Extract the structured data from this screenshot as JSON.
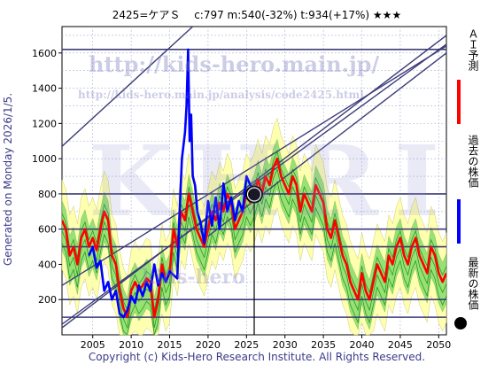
{
  "header": {
    "title": "2425=ケアＳ　 c:797  m:540(-32%)  t:934(+17%)  ★★★"
  },
  "side_text": "Generated on Monday 2026/1/5.",
  "footer": "Copyright (c) Kids-Hero Research Institute. All Rights Reserved.",
  "watermarks": {
    "url": "http://kids-hero.main.jp/",
    "path": "http://kids-hero.main.jp/analysis/code2425.html",
    "site": "kids-hero",
    "big": "KHRI"
  },
  "legend": {
    "forecast_label": "ＡＩ予測",
    "past_label": "過去の株価",
    "latest_label": "最新の株価"
  },
  "colors": {
    "forecast": "#ff0000",
    "past": "#0000ff",
    "latest": "#000000",
    "band_outer": "#ffffa8",
    "band_inner": "#44cc44",
    "hline": "#3c3c78",
    "grid": "#aab4d8"
  },
  "chart_data": {
    "type": "line",
    "title": "2425=ケアＳ c:797 m:540(-32%) t:934(+17%) ★★★",
    "xlabel": "",
    "ylabel": "",
    "xlim": [
      2001,
      2051
    ],
    "ylim": [
      0,
      1750
    ],
    "x_ticks": [
      2005,
      2010,
      2015,
      2020,
      2025,
      2030,
      2035,
      2040,
      2045,
      2050
    ],
    "y_ticks": [
      200,
      400,
      600,
      800,
      1000,
      1200,
      1400,
      1600
    ],
    "grid": true,
    "legend_position": "right",
    "horizontal_levels": [
      100,
      200,
      500,
      600,
      800,
      1620
    ],
    "latest_point": {
      "x": 2026.0,
      "y": 797
    },
    "channel_lines": [
      {
        "x1": 2001,
        "y1": 40,
        "x2": 2051,
        "y2": 1700
      },
      {
        "x1": 2001,
        "y1": 60,
        "x2": 2051,
        "y2": 1650
      },
      {
        "x1": 2001,
        "y1": 280,
        "x2": 2051,
        "y2": 1640
      },
      {
        "x1": 2001,
        "y1": 1070,
        "x2": 2018,
        "y2": 1750
      },
      {
        "x1": 2020,
        "y1": 560,
        "x2": 2051,
        "y2": 1600
      }
    ],
    "series": [
      {
        "name": "過去の株価",
        "x": [
          2004.5,
          2005,
          2005.5,
          2006,
          2006.5,
          2007,
          2007.5,
          2008,
          2008.5,
          2009,
          2009.5,
          2010,
          2010.5,
          2011,
          2011.5,
          2012,
          2012.5,
          2013,
          2013.5,
          2014,
          2014.5,
          2015,
          2015.5,
          2016,
          2016.3,
          2016.6,
          2017,
          2017.2,
          2017.4,
          2017.6,
          2017.8,
          2018,
          2018.3,
          2018.6,
          2019,
          2019.5,
          2020,
          2020.5,
          2021,
          2021.5,
          2022,
          2022.5,
          2023,
          2023.5,
          2024,
          2024.5,
          2025,
          2025.5,
          2026
        ],
        "y": [
          450,
          500,
          380,
          420,
          250,
          300,
          200,
          250,
          120,
          100,
          140,
          220,
          180,
          280,
          220,
          300,
          250,
          400,
          280,
          350,
          300,
          360,
          340,
          320,
          700,
          1000,
          1150,
          1300,
          1620,
          1100,
          1250,
          900,
          850,
          700,
          640,
          520,
          760,
          620,
          780,
          600,
          860,
          700,
          780,
          650,
          760,
          700,
          900,
          850,
          797
        ]
      },
      {
        "name": "ＡＩ予測（過去）",
        "x": [
          2001,
          2001.5,
          2002,
          2002.5,
          2003,
          2003.5,
          2004,
          2004.5,
          2005,
          2005.5,
          2006,
          2006.5,
          2007,
          2007.5,
          2008,
          2008.5,
          2009,
          2009.5,
          2010,
          2010.5,
          2011,
          2011.5,
          2012,
          2012.5,
          2013,
          2013.5,
          2014,
          2014.5,
          2015,
          2015.5,
          2016,
          2016.5,
          2017,
          2017.5,
          2018,
          2018.5,
          2019,
          2019.5,
          2020,
          2020.5,
          2021,
          2021.5,
          2022,
          2022.5,
          2023,
          2023.5,
          2024,
          2024.5,
          2025,
          2025.5,
          2026
        ],
        "y": [
          650,
          600,
          450,
          500,
          400,
          550,
          600,
          500,
          550,
          480,
          600,
          700,
          650,
          450,
          400,
          250,
          150,
          100,
          250,
          300,
          250,
          280,
          320,
          300,
          100,
          200,
          400,
          300,
          350,
          600,
          500,
          700,
          650,
          800,
          700,
          600,
          550,
          500,
          600,
          700,
          650,
          750,
          700,
          800,
          750,
          600,
          650,
          700,
          800,
          750,
          800
        ]
      },
      {
        "name": "ＡＩ予測",
        "x": [
          2026,
          2026.5,
          2027,
          2027.5,
          2028,
          2028.5,
          2029,
          2029.5,
          2030,
          2030.5,
          2031,
          2031.5,
          2032,
          2032.5,
          2033,
          2033.5,
          2034,
          2034.5,
          2035,
          2035.5,
          2036,
          2036.5,
          2037,
          2037.5,
          2038,
          2038.5,
          2039,
          2039.5,
          2040,
          2040.5,
          2041,
          2041.5,
          2042,
          2042.5,
          2043,
          2043.5,
          2044,
          2044.5,
          2045,
          2045.5,
          2046,
          2046.5,
          2047,
          2047.5,
          2048,
          2048.5,
          2049,
          2049.5,
          2050,
          2050.5,
          2051
        ],
        "y": [
          800,
          880,
          800,
          900,
          850,
          950,
          1000,
          900,
          850,
          800,
          900,
          850,
          700,
          800,
          750,
          700,
          850,
          800,
          750,
          600,
          550,
          650,
          550,
          450,
          400,
          300,
          250,
          200,
          350,
          250,
          200,
          300,
          400,
          350,
          300,
          450,
          400,
          500,
          550,
          450,
          400,
          500,
          550,
          450,
          400,
          350,
          500,
          450,
          350,
          300,
          350
        ]
      }
    ]
  }
}
